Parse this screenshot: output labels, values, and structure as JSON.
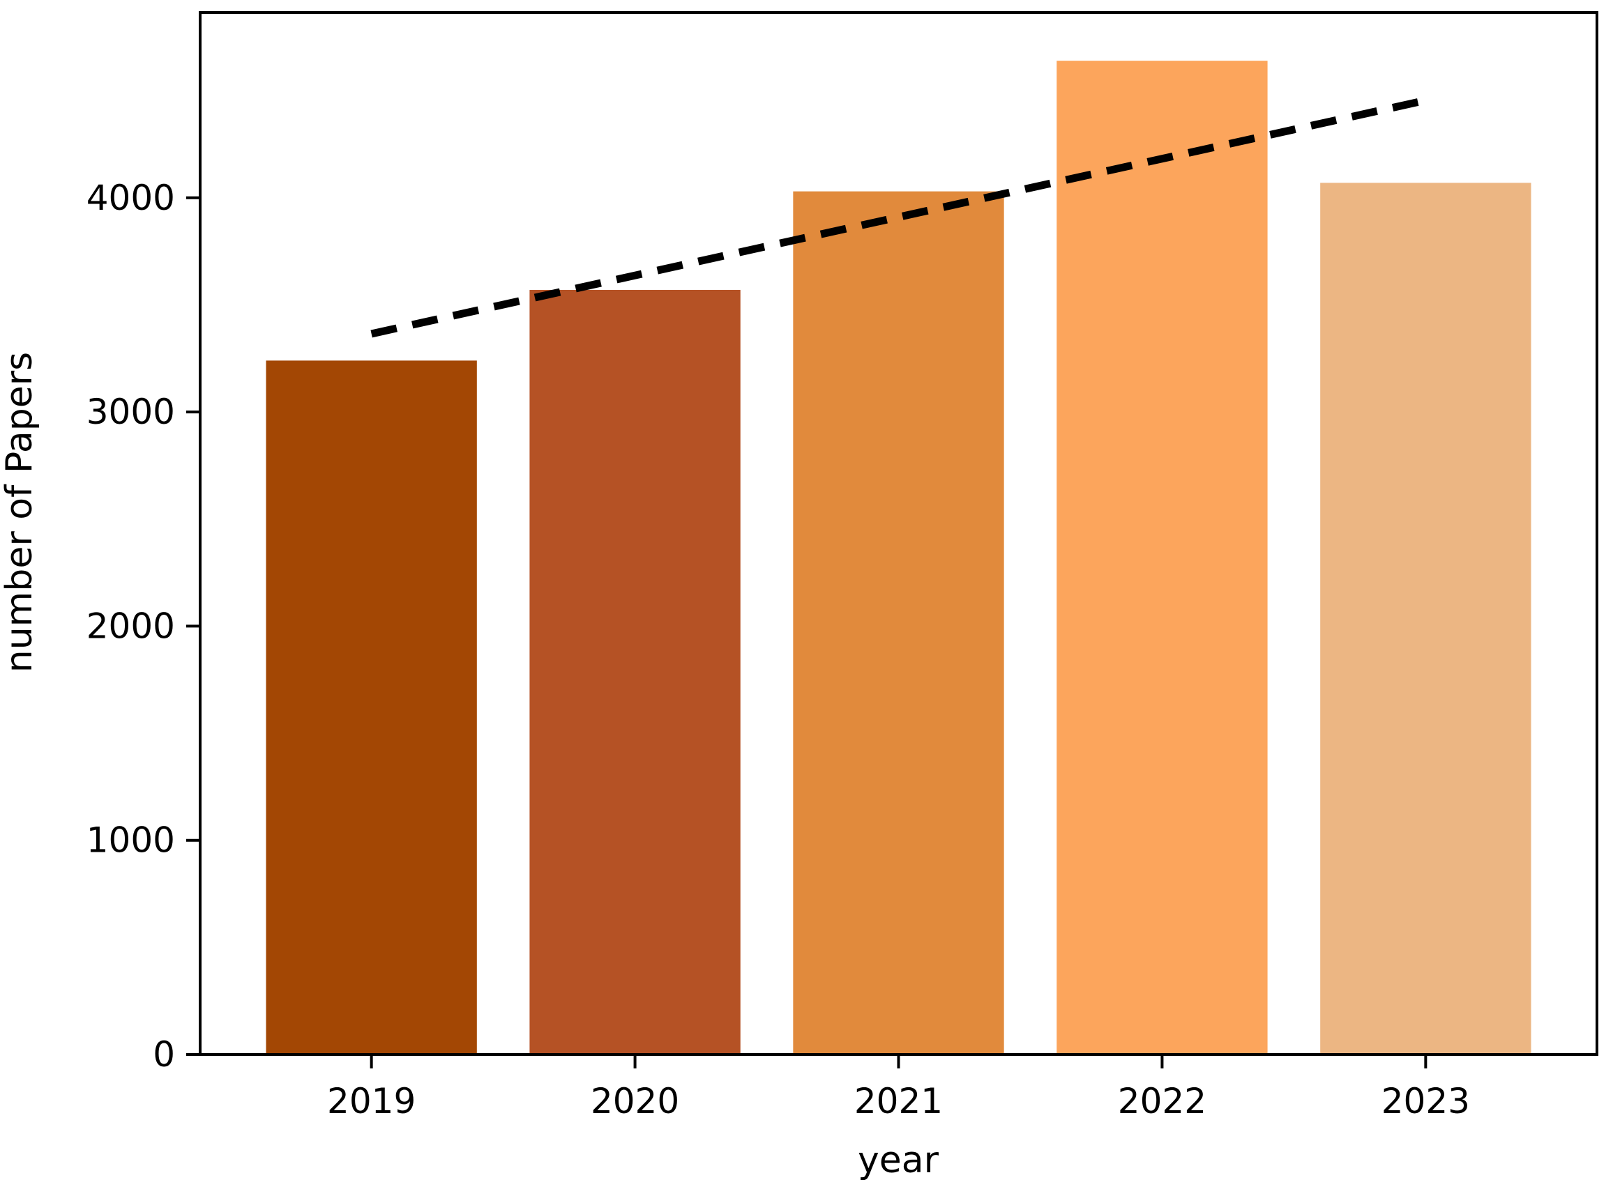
{
  "figure": {
    "background_color": "#ffffff",
    "axis_color": "#000000",
    "text_color": "#000000"
  },
  "chart_data": {
    "type": "bar",
    "title": "",
    "xlabel": "year",
    "ylabel": "number of Papers",
    "categories": [
      "2019",
      "2020",
      "2021",
      "2022",
      "2023"
    ],
    "values": [
      3240,
      3570,
      4030,
      4640,
      4070
    ],
    "bar_colors": [
      "#a34704",
      "#b55225",
      "#e18a3c",
      "#fca55c",
      "#ecb683"
    ],
    "yticks": [
      0,
      1000,
      2000,
      3000,
      4000
    ],
    "ylim": [
      0,
      4865
    ],
    "xlim": [
      -0.65,
      4.65
    ],
    "bar_width_fraction": 0.8,
    "grid": false,
    "legend": false,
    "trendline": {
      "type": "linear-fit",
      "line_style": "dashed",
      "color": "#000000",
      "x_start_category": "2019",
      "x_end_category": "2023",
      "y_start": 3365,
      "y_end": 4455
    }
  }
}
